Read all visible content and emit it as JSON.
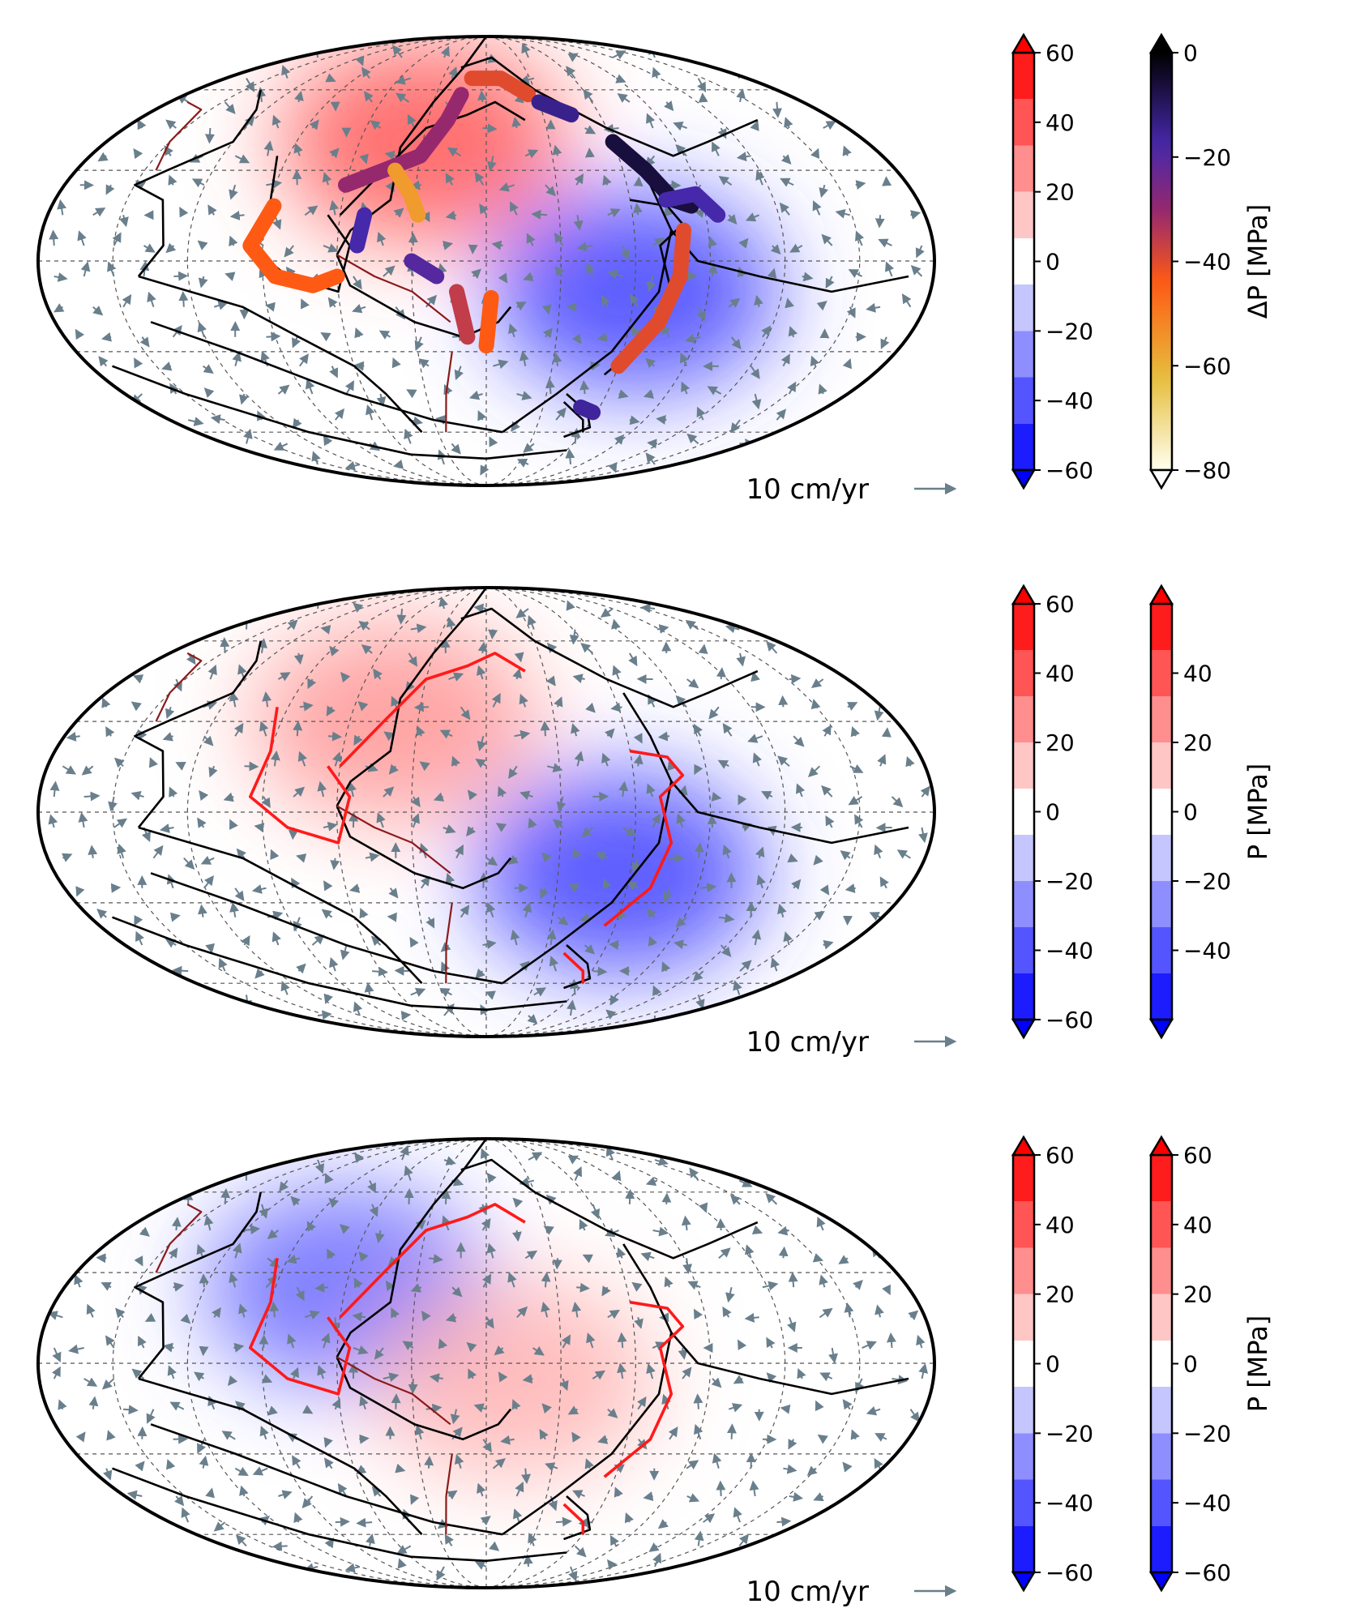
{
  "colors": {
    "positive": "#ff0000",
    "negative": "#0000ff",
    "background": "#ffffff",
    "velocity_arrow": "#6a7f8c",
    "plate_boundary": "#000000",
    "subduction_boundary": "#ff1a1a",
    "ridge_boundary": "#8b1a1a"
  },
  "chart_data": [
    {
      "type": "heatmap",
      "projection": "mollweide",
      "velocity_scale_label": "10 cm/yr",
      "velocity_scale_value": 10,
      "colorbars": [
        {
          "label": "",
          "range": [
            -60,
            60
          ],
          "ticks": [
            "60",
            "40",
            "20",
            "0",
            "−20",
            "−40",
            "−60"
          ],
          "tick_values": [
            60,
            40,
            20,
            0,
            -20,
            -40,
            -60
          ],
          "colormap": "blue-white-red",
          "extend": "both"
        },
        {
          "label": "ΔP  [MPa]",
          "range": [
            -80,
            0
          ],
          "ticks": [
            "0",
            "−20",
            "−40",
            "−60",
            "−80"
          ],
          "tick_values": [
            0,
            -20,
            -40,
            -60,
            -80
          ],
          "colormap": "hot-inverted",
          "extend": "min"
        }
      ],
      "field_features": [
        {
          "name": "high",
          "lon": -30,
          "lat": 40,
          "value": 40
        },
        {
          "name": "low",
          "lon": 60,
          "lat": -10,
          "value": -45
        }
      ]
    },
    {
      "type": "heatmap",
      "projection": "mollweide",
      "velocity_scale_label": "10 cm/yr",
      "velocity_scale_value": 10,
      "colorbars": [
        {
          "label": "",
          "range": [
            -60,
            60
          ],
          "ticks": [
            "60",
            "40",
            "20",
            "0",
            "−20",
            "−40",
            "−60"
          ],
          "tick_values": [
            60,
            40,
            20,
            0,
            -20,
            -40,
            -60
          ],
          "colormap": "blue-white-red",
          "extend": "both"
        },
        {
          "label": "P  [MPa]",
          "range": [
            -60,
            60
          ],
          "ticks": [
            "40",
            "20",
            "0",
            "−20",
            "−40"
          ],
          "tick_values": [
            40,
            20,
            0,
            -20,
            -40
          ],
          "colormap": "blue-white-red",
          "extend": "both"
        }
      ],
      "field_features": [
        {
          "name": "high",
          "lon": -40,
          "lat": 30,
          "value": 25
        },
        {
          "name": "low",
          "lon": 55,
          "lat": -20,
          "value": -45
        }
      ]
    },
    {
      "type": "heatmap",
      "projection": "mollweide",
      "velocity_scale_label": "10 cm/yr",
      "velocity_scale_value": 10,
      "colorbars": [
        {
          "label": "",
          "range": [
            -60,
            60
          ],
          "ticks": [
            "60",
            "40",
            "20",
            "0",
            "−20",
            "−40",
            "−60"
          ],
          "tick_values": [
            60,
            40,
            20,
            0,
            -20,
            -40,
            -60
          ],
          "colormap": "blue-white-red",
          "extend": "both"
        },
        {
          "label": "P  [MPa]",
          "range": [
            -60,
            60
          ],
          "ticks": [
            "60",
            "40",
            "20",
            "0",
            "−20",
            "−40",
            "−60"
          ],
          "tick_values": [
            60,
            40,
            20,
            0,
            -20,
            -40,
            -60
          ],
          "colormap": "blue-white-red",
          "extend": "both"
        }
      ],
      "field_features": [
        {
          "name": "low",
          "lon": -60,
          "lat": 25,
          "value": -35
        },
        {
          "name": "high",
          "lon": 10,
          "lat": -5,
          "value": 18
        }
      ]
    }
  ]
}
